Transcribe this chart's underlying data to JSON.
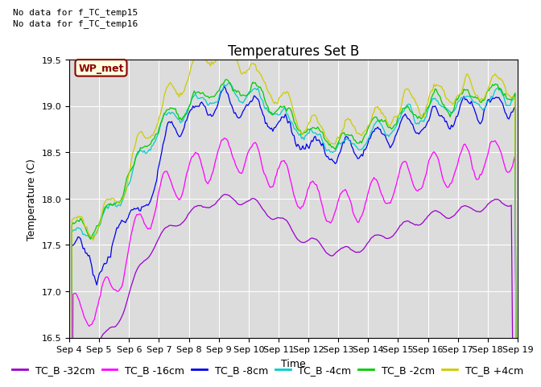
{
  "title": "Temperatures Set B",
  "xlabel": "Time",
  "ylabel": "Temperature (C)",
  "ylim": [
    16.5,
    19.5
  ],
  "x_tick_labels": [
    "Sep 4",
    "Sep 5",
    "Sep 6",
    "Sep 7",
    "Sep 8",
    "Sep 9",
    "Sep 10",
    "Sep 11",
    "Sep 12",
    "Sep 13",
    "Sep 14",
    "Sep 15",
    "Sep 16",
    "Sep 17",
    "Sep 18",
    "Sep 19"
  ],
  "annotation_lines": [
    "No data for f_TC_temp15",
    "No data for f_TC_temp16"
  ],
  "wp_met_label": "WP_met",
  "series": [
    {
      "label": "TC_B -32cm",
      "color": "#9900cc"
    },
    {
      "label": "TC_B -16cm",
      "color": "#ff00ff"
    },
    {
      "label": "TC_B -8cm",
      "color": "#0000ee"
    },
    {
      "label": "TC_B -4cm",
      "color": "#00cccc"
    },
    {
      "label": "TC_B -2cm",
      "color": "#00cc00"
    },
    {
      "label": "TC_B +4cm",
      "color": "#cccc00"
    }
  ],
  "background_color": "#dcdcdc",
  "title_fontsize": 12,
  "axis_fontsize": 9,
  "tick_fontsize": 8,
  "legend_fontsize": 9
}
